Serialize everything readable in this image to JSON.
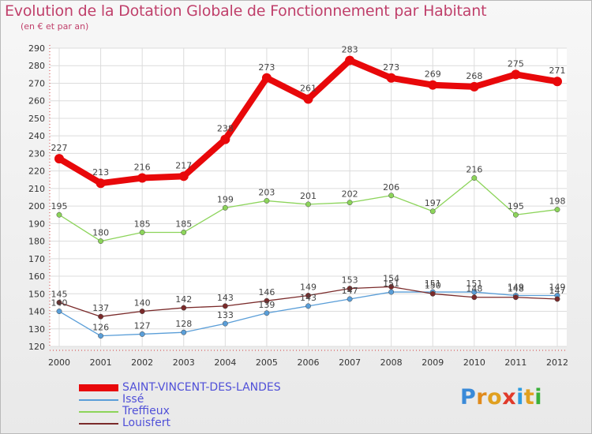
{
  "title": "Evolution de la Dotation Globale de Fonctionnement par Habitant",
  "subtitle": "(en € et par an)",
  "logo": {
    "letters": [
      "P",
      "r",
      "o",
      "x",
      "i",
      "t",
      "i"
    ],
    "colors": [
      "#3a8ad8",
      "#e08a1c",
      "#e0a020",
      "#e03a2a",
      "#2c9be0",
      "#e0a020",
      "#3ab03a"
    ]
  },
  "chart_data": {
    "type": "line",
    "x": [
      "2000",
      "2001",
      "2002",
      "2003",
      "2004",
      "2005",
      "2006",
      "2007",
      "2008",
      "2009",
      "2010",
      "2011",
      "2012"
    ],
    "ylim": [
      120,
      290
    ],
    "yticks": [
      "120",
      "130",
      "140",
      "150",
      "160",
      "170",
      "180",
      "190",
      "200",
      "210",
      "220",
      "230",
      "240",
      "250",
      "260",
      "270",
      "280",
      "290"
    ],
    "grid": true,
    "legend_position": "bottom-left",
    "series": [
      {
        "name": "SAINT-VINCENT-DES-LANDES",
        "color": "#e8080a",
        "values": [
          227,
          213,
          216,
          217,
          238,
          273,
          261,
          283,
          273,
          269,
          268,
          275,
          271
        ]
      },
      {
        "name": "Issé",
        "color": "#5a9ed8",
        "values": [
          140,
          126,
          127,
          128,
          133,
          139,
          143,
          147,
          151,
          151,
          151,
          149,
          149
        ]
      },
      {
        "name": "Treffieux",
        "color": "#8cd45a",
        "values": [
          195,
          180,
          185,
          185,
          199,
          203,
          201,
          202,
          206,
          197,
          216,
          195,
          198
        ]
      },
      {
        "name": "Louisfert",
        "color": "#7a2a2a",
        "values": [
          145,
          137,
          140,
          142,
          143,
          146,
          149,
          153,
          154,
          150,
          148,
          148,
          147
        ]
      }
    ]
  }
}
